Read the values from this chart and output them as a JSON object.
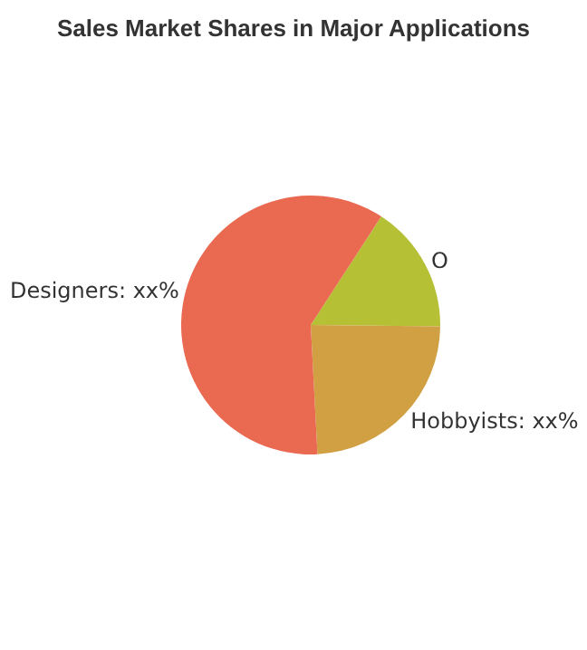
{
  "chart_data": {
    "type": "pie",
    "title": "Sales Market Shares in Major Applications",
    "categories": [
      "O",
      "Hobbyists: xx%",
      "Designers: xx%"
    ],
    "values": [
      16,
      24,
      60
    ],
    "colors": [
      "#b5c035",
      "#d1a043",
      "#e96951"
    ],
    "legend": false
  }
}
